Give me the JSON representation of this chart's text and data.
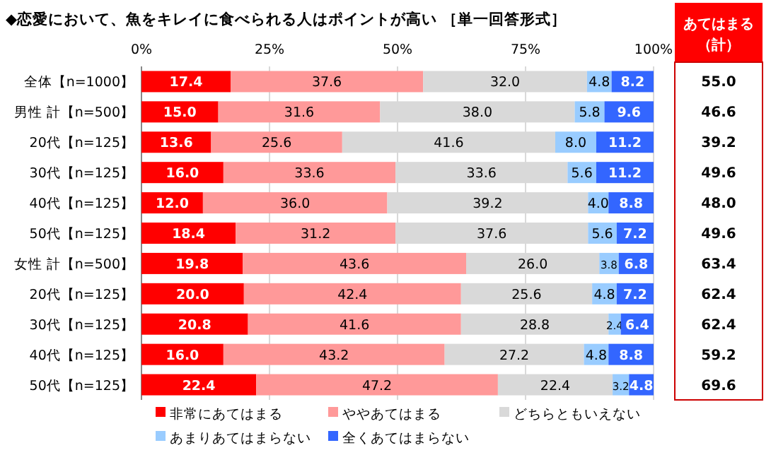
{
  "chart_data": {
    "type": "bar",
    "orientation": "horizontal",
    "stacked": true,
    "title": "◆恋愛において、魚をキレイに食べられる人はポイントが高い ［単一回答形式］",
    "categories": [
      "全体【n=1000】",
      "男性 計【n=500】",
      "20代【n=125】",
      "30代【n=125】",
      "40代【n=125】",
      "50代【n=125】",
      "女性 計【n=500】",
      "20代【n=125】",
      "30代【n=125】",
      "40代【n=125】",
      "50代【n=125】"
    ],
    "series": [
      {
        "name": "非常にあてはまる",
        "color": "#ff0000",
        "values": [
          17.4,
          15.0,
          13.6,
          16.0,
          12.0,
          18.4,
          19.8,
          20.0,
          20.8,
          16.0,
          22.4
        ],
        "value_labels": [
          "17.4",
          "15.0",
          "13.6",
          "16.0",
          "12.0",
          "18.4",
          "19.8",
          "20.0",
          "20.8",
          "16.0",
          "22.4"
        ]
      },
      {
        "name": "ややあてはまる",
        "color": "#ff9999",
        "values": [
          37.6,
          31.6,
          25.6,
          33.6,
          36.0,
          31.2,
          43.6,
          42.4,
          41.6,
          43.2,
          47.2
        ],
        "value_labels": [
          "37.6",
          "31.6",
          "25.6",
          "33.6",
          "36.0",
          "31.2",
          "43.6",
          "42.4",
          "41.6",
          "43.2",
          "47.2"
        ]
      },
      {
        "name": "どちらともいえない",
        "color": "#d9d9d9",
        "values": [
          32.0,
          38.0,
          41.6,
          33.6,
          39.2,
          37.6,
          26.0,
          25.6,
          28.8,
          27.2,
          22.4
        ],
        "value_labels": [
          "32.0",
          "38.0",
          "41.6",
          "33.6",
          "39.2",
          "37.6",
          "26.0",
          "25.6",
          "28.8",
          "27.2",
          "22.4"
        ]
      },
      {
        "name": "あまりあてはまらない",
        "color": "#99ccff",
        "values": [
          4.8,
          5.8,
          8.0,
          5.6,
          4.0,
          5.6,
          3.8,
          4.8,
          2.4,
          4.8,
          3.2
        ],
        "value_labels": [
          "4.8",
          "5.8",
          "8.0",
          "5.6",
          "4.0",
          "5.6",
          "3.8",
          "4.8",
          "2.4",
          "4.8",
          "3.2"
        ]
      },
      {
        "name": "全くあてはまらない",
        "color": "#3366ff",
        "values": [
          8.2,
          9.6,
          11.2,
          11.2,
          8.8,
          7.2,
          6.8,
          7.2,
          6.4,
          8.8,
          4.8
        ],
        "value_labels": [
          "8.2",
          "9.6",
          "11.2",
          "11.2",
          "8.8",
          "7.2",
          "6.8",
          "7.2",
          "6.4",
          "8.8",
          "4.8"
        ]
      }
    ],
    "xlim": [
      0,
      100
    ],
    "xticks": [
      {
        "value": 0,
        "label": "0%"
      },
      {
        "value": 25,
        "label": "25%"
      },
      {
        "value": 50,
        "label": "50%"
      },
      {
        "value": 75,
        "label": "75%"
      },
      {
        "value": 100,
        "label": "100%"
      }
    ],
    "grid": "x",
    "legend": "bottom",
    "annotations": [
      "あてはまる（計）",
      "55.0",
      "46.6",
      "39.2",
      "49.6",
      "48.0",
      "49.6",
      "63.4",
      "62.4",
      "62.4",
      "59.2",
      "69.6"
    ]
  }
}
